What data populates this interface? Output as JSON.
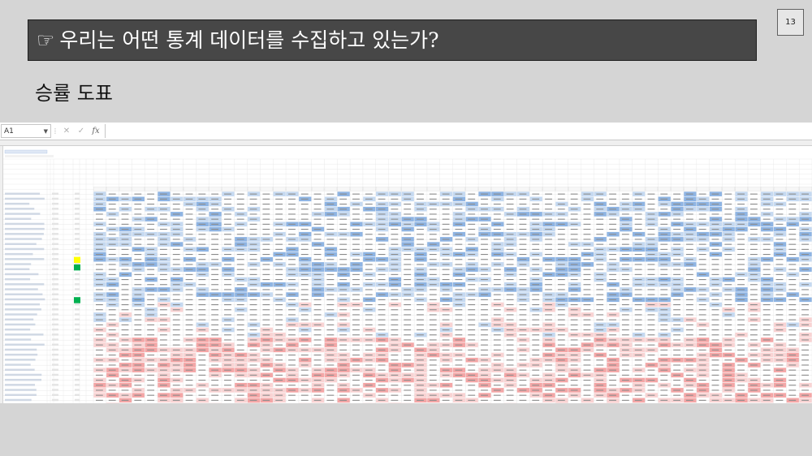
{
  "slide": {
    "title_icon": "☞",
    "title": "우리는 어떤 통계 데이터를 수집하고 있는가?",
    "page_number": "13",
    "subtitle": "승률 도표"
  },
  "excel": {
    "name_box": "A1",
    "fx_symbol": "fx",
    "cancel_symbol": "✕",
    "enter_symbol": "✓",
    "grid": {
      "table_rows": 48,
      "data_columns": 56,
      "colors": {
        "blue_strong": "#8eb4e3",
        "blue_light": "#c5d9f1",
        "red_strong": "#f4a6a6",
        "red_light": "#f9d3d3",
        "yellow_marker": "#ffff00",
        "green_marker": "#00b050",
        "blue_marker": "#0070c0",
        "red_marker": "#ff0000"
      }
    }
  },
  "colors": {
    "title_bg": "#474747",
    "slide_bg": "#d5d5d5"
  }
}
